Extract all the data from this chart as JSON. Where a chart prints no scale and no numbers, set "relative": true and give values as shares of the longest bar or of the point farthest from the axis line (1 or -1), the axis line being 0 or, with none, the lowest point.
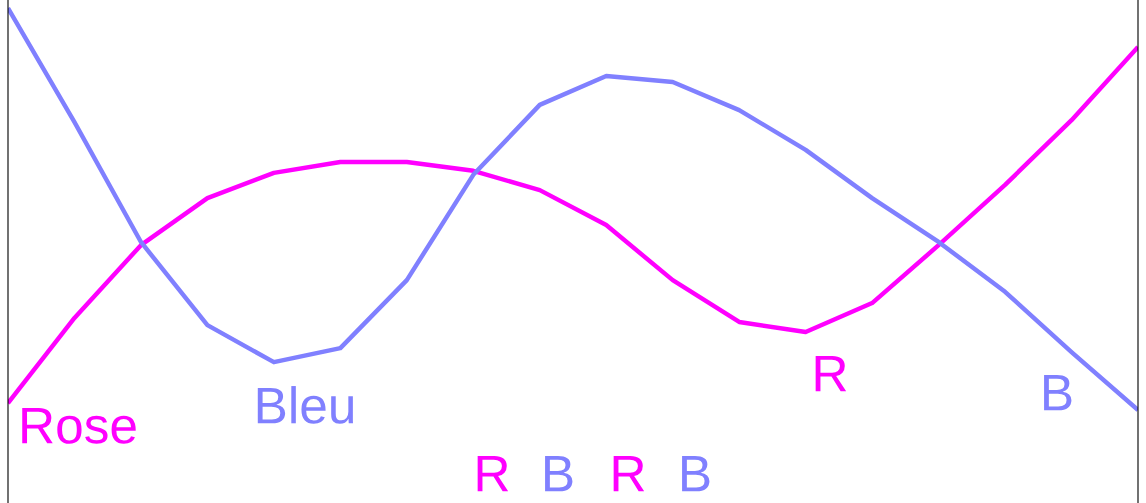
{
  "chart_data": {
    "type": "line",
    "relative": true,
    "categories": [
      null,
      null,
      null,
      null,
      null,
      null,
      null,
      null,
      null,
      null,
      null,
      null,
      null,
      null,
      null,
      null,
      null,
      null
    ],
    "series": [
      {
        "name": "Rose",
        "color": "#ff00ff",
        "values": [
          0.017,
          0.229,
          0.41,
          0.527,
          0.59,
          0.617,
          0.617,
          0.595,
          0.547,
          0.46,
          0.323,
          0.219,
          0.194,
          0.266,
          0.41,
          0.56,
          0.721,
          0.903
        ]
      },
      {
        "name": "Bleu",
        "color": "#8080ff",
        "values": [
          1.0,
          0.716,
          0.418,
          0.211,
          0.119,
          0.154,
          0.323,
          0.585,
          0.759,
          0.831,
          0.816,
          0.746,
          0.647,
          0.527,
          0.418,
          0.294,
          0.144,
          0.0
        ]
      }
    ],
    "annotations": [
      "R",
      "B",
      "R",
      "B",
      "R",
      "B"
    ],
    "legend": false,
    "marker": "none",
    "line_style": "solid"
  }
}
